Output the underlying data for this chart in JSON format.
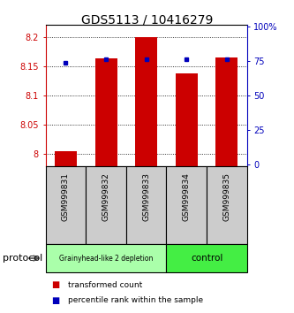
{
  "title": "GDS5113 / 10416279",
  "samples": [
    "GSM999831",
    "GSM999832",
    "GSM999833",
    "GSM999834",
    "GSM999835"
  ],
  "red_values": [
    8.005,
    8.163,
    8.2,
    8.137,
    8.165
  ],
  "blue_values": [
    73.5,
    76.0,
    76.0,
    76.0,
    76.0
  ],
  "ylim_left": [
    7.98,
    8.22
  ],
  "ylim_right": [
    -1,
    101
  ],
  "yticks_left": [
    8.0,
    8.05,
    8.1,
    8.15,
    8.2
  ],
  "ytick_labels_left": [
    "8",
    "8.05",
    "8.1",
    "8.15",
    "8.2"
  ],
  "yticks_right": [
    0,
    25,
    50,
    75,
    100
  ],
  "ytick_labels_right": [
    "0",
    "25",
    "50",
    "75",
    "100%"
  ],
  "group1_label": "Grainyhead-like 2 depletion",
  "group2_label": "control",
  "group1_color": "#aaffaa",
  "group2_color": "#44ee44",
  "protocol_label": "protocol",
  "legend_red": "transformed count",
  "legend_blue": "percentile rank within the sample",
  "bar_color": "#cc0000",
  "dot_color": "#0000bb",
  "bar_width": 0.55,
  "background_color": "#ffffff",
  "label_box_color": "#cccccc",
  "left_tick_color": "#cc0000",
  "right_tick_color": "#0000bb",
  "title_fontsize": 10,
  "tick_fontsize": 7,
  "sample_fontsize": 6.5
}
